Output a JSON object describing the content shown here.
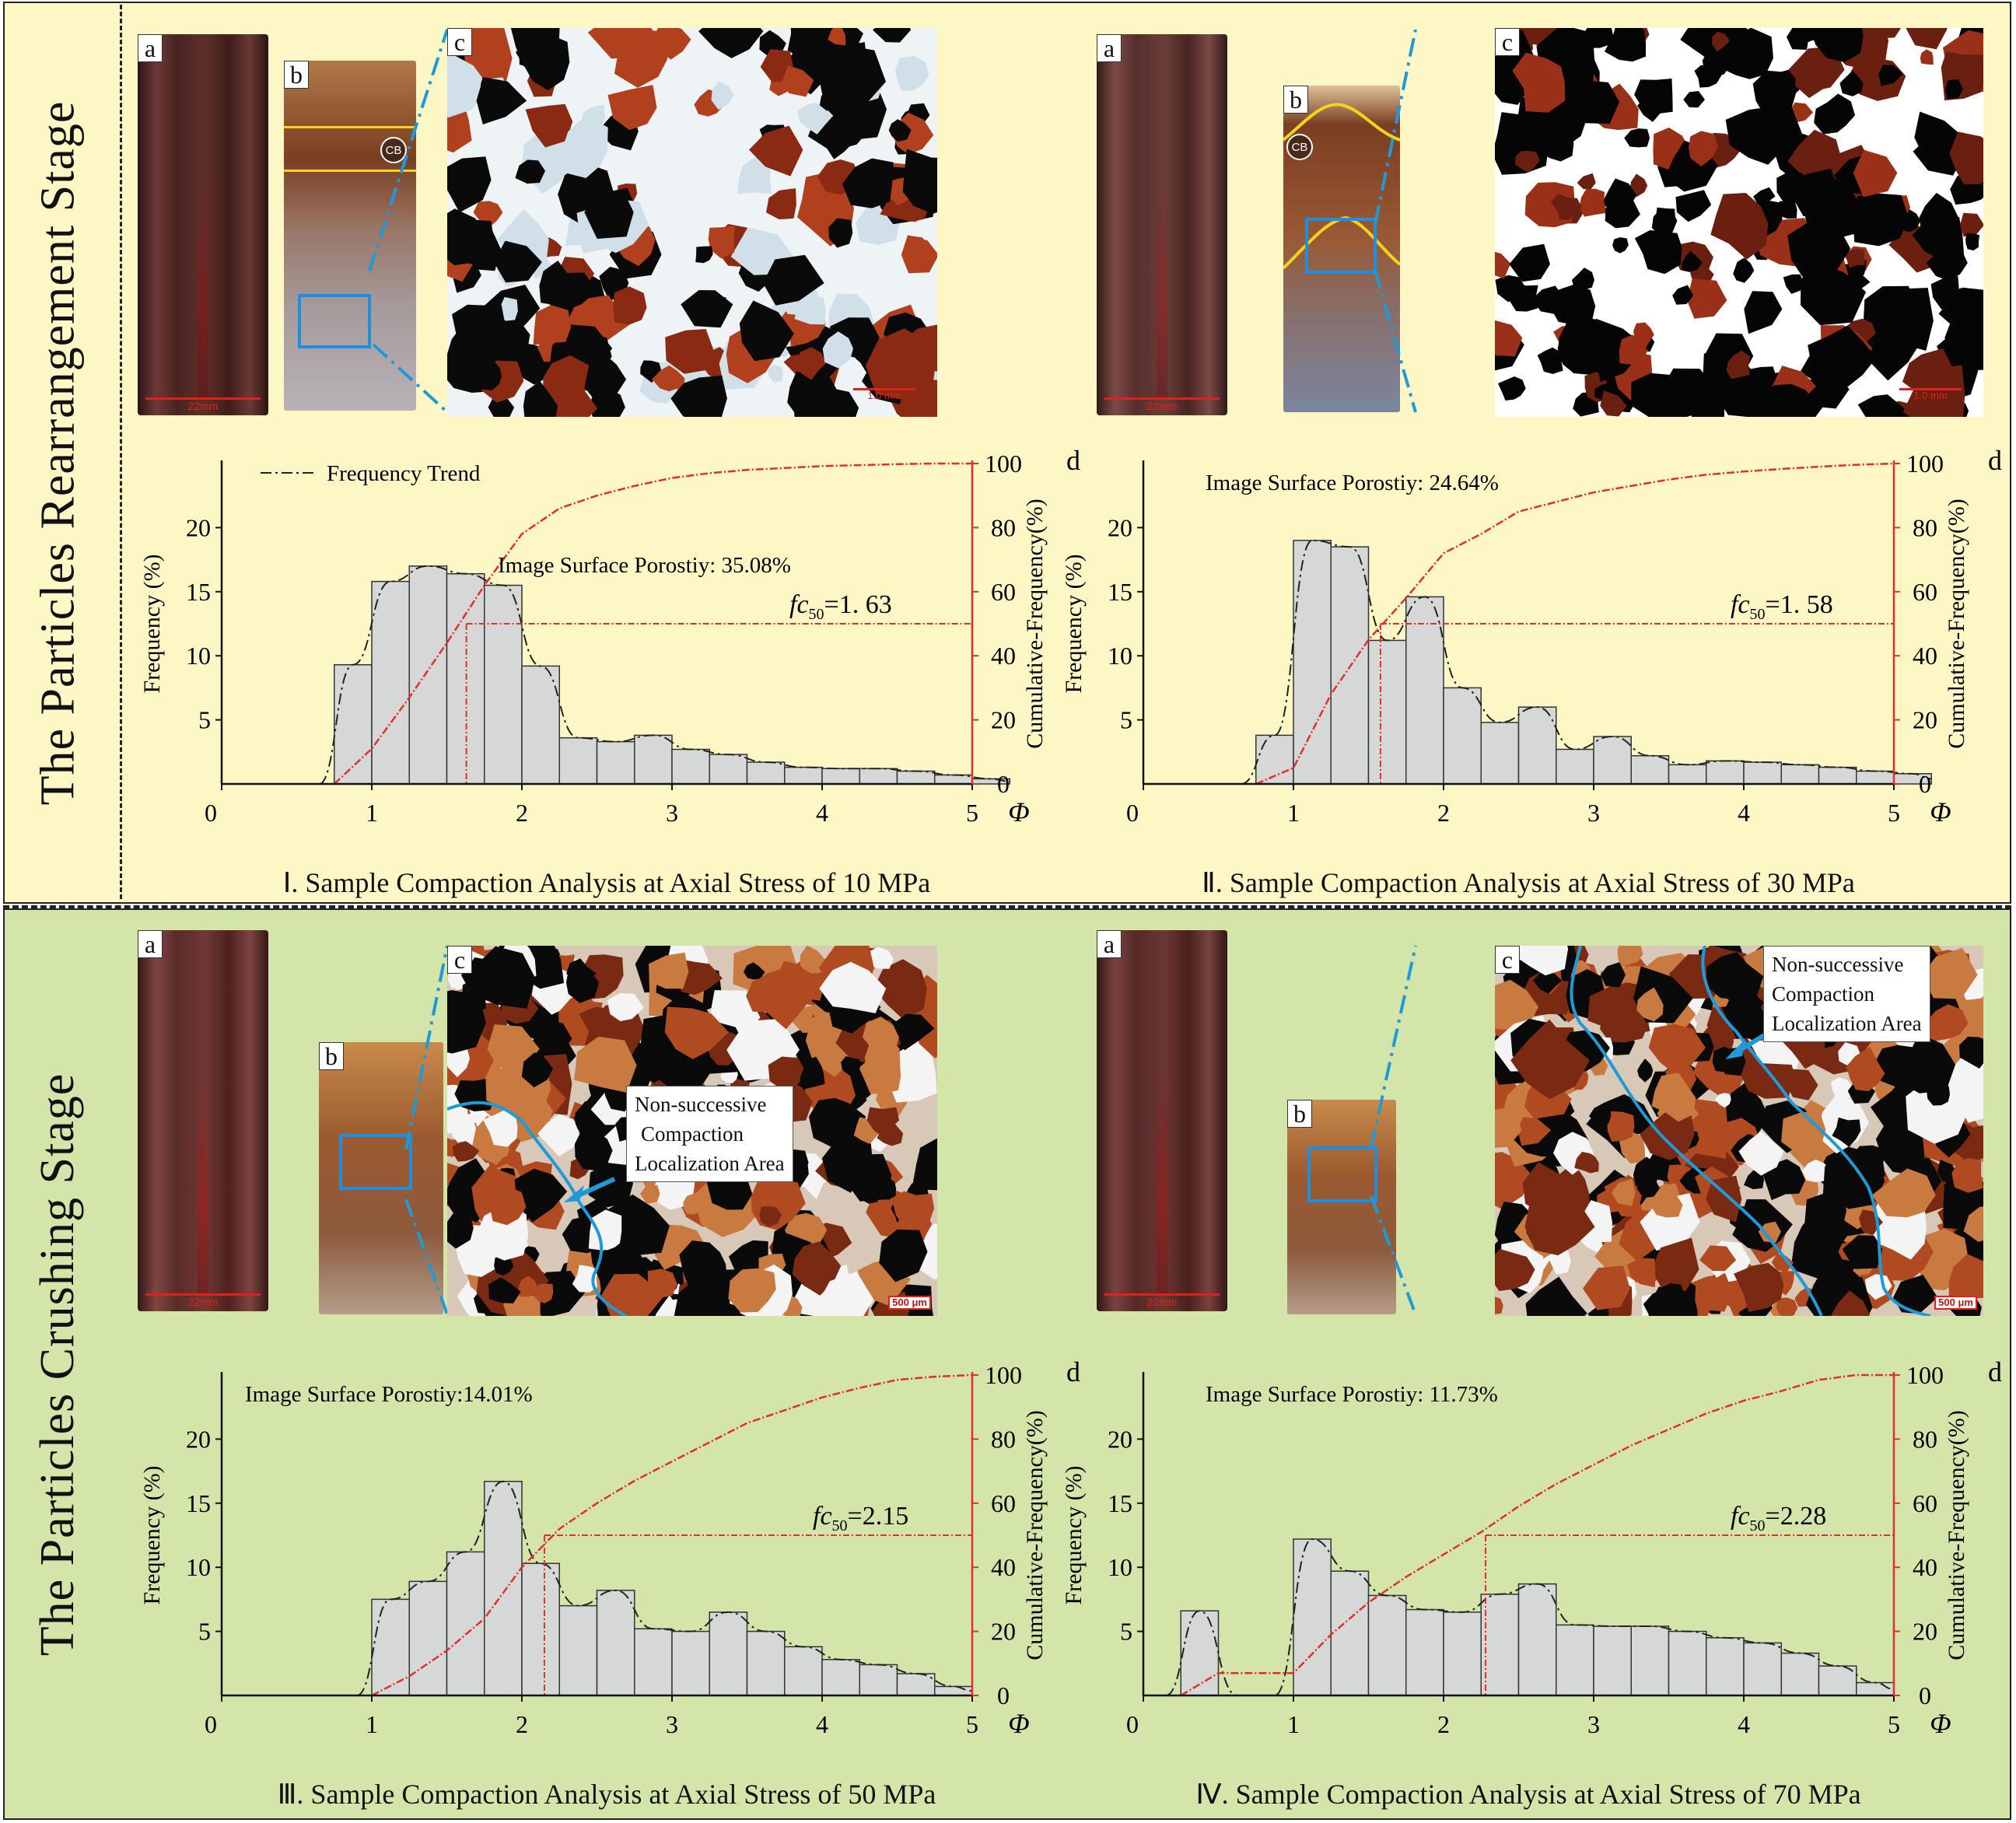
{
  "stages": [
    {
      "id": "top",
      "title": "The Particles Rearrangement Stage",
      "color": "#fdf7c6"
    },
    {
      "id": "bottom",
      "title": "The Particles Crushing  Stage",
      "color": "#d3e5a9"
    }
  ],
  "panel_labels": {
    "a": "a",
    "b": "b",
    "c": "c",
    "d": "d"
  },
  "scale_labels": {
    "core": "22mm",
    "micro_1": "1.0 mm",
    "micro_2": "1.0 mm",
    "micro_3": "500 μm",
    "micro_4": "500 μm"
  },
  "annotations": {
    "cb": "CB",
    "localization_1": [
      "Non-successive",
      "Compaction",
      "Localization Area"
    ],
    "localization_2": [
      "Non-successive",
      "Compaction",
      "Localization Area"
    ]
  },
  "legend": {
    "frequency_trend": "Frequency Trend"
  },
  "colors": {
    "bar_fill": "#d6d8d8",
    "bar_stroke": "#333333",
    "cum_line": "#e0302a",
    "trend_line": "#222222",
    "blue_box": "#1f8ee0",
    "yellow_line": "#f2d41b"
  },
  "axes": {
    "ylabel_left": "Frequency (%)",
    "ylabel_right": "Cumulative-Frequency(%)",
    "xlabel": "Φ",
    "x_ticks": [
      "0",
      "1",
      "2",
      "3",
      "4",
      "5"
    ],
    "y_left_ticks": [
      "5",
      "10",
      "15",
      "20"
    ],
    "y_right_ticks": [
      "0",
      "20",
      "40",
      "60",
      "80",
      "100"
    ]
  },
  "chart_data": [
    {
      "type": "bar",
      "caption": "Ⅰ. Sample Compaction Analysis at Axial Stress of 10 MPa",
      "porosity_label": "Image Surface Porostiy: 35.08%",
      "fc50_label": "=1. 63",
      "fc50_value": 1.63,
      "bin_start": 0.75,
      "bin_width": 0.25,
      "frequency": [
        9.3,
        15.8,
        17.0,
        16.4,
        15.5,
        9.2,
        3.6,
        3.3,
        3.8,
        2.7,
        2.3,
        1.7,
        1.3,
        1.2,
        1.2,
        1.0,
        0.7,
        0.4
      ],
      "cumulative_x": [
        0.75,
        1.0,
        1.25,
        1.5,
        1.75,
        2.0,
        2.25,
        2.5,
        2.75,
        3.0,
        3.25,
        3.5,
        3.75,
        4.0,
        4.25,
        4.5,
        4.75,
        5.0
      ],
      "cumulative": [
        0,
        11,
        27,
        44,
        62,
        78,
        86,
        90,
        93,
        95.5,
        97,
        98,
        98.6,
        99.2,
        99.5,
        99.8,
        100,
        100
      ],
      "x_range": [
        0,
        5
      ],
      "y_left_range": [
        0,
        25
      ],
      "y_right_range": [
        0,
        100
      ]
    },
    {
      "type": "bar",
      "caption": "Ⅱ. Sample Compaction Analysis at Axial Stress of 30 MPa",
      "porosity_label": "Image Surface Porostiy: 24.64%",
      "fc50_label": "=1. 58",
      "fc50_value": 1.58,
      "bin_start": 0.75,
      "bin_width": 0.25,
      "frequency": [
        3.8,
        19.0,
        18.5,
        11.2,
        14.6,
        7.5,
        4.8,
        6.0,
        2.7,
        3.7,
        2.2,
        1.5,
        1.8,
        1.7,
        1.5,
        1.3,
        1.0,
        0.8
      ],
      "cumulative_x": [
        0.75,
        1.0,
        1.25,
        1.5,
        1.75,
        2.0,
        2.25,
        2.5,
        2.75,
        3.0,
        3.25,
        3.5,
        3.75,
        4.0,
        4.25,
        4.5,
        4.75,
        5.0
      ],
      "cumulative": [
        0,
        5,
        28,
        45,
        58,
        72,
        78,
        85,
        88,
        91,
        93,
        95,
        96.5,
        97.5,
        98.3,
        99,
        99.6,
        100
      ],
      "x_range": [
        0,
        5
      ],
      "y_left_range": [
        0,
        25
      ],
      "y_right_range": [
        0,
        100
      ]
    },
    {
      "type": "bar",
      "caption": "Ⅲ. Sample Compaction Analysis at Axial Stress of 50 MPa",
      "porosity_label": "Image Surface Porostiy:14.01%",
      "fc50_label": "=2.15",
      "fc50_value": 2.15,
      "bin_start": 1.0,
      "bin_width": 0.25,
      "frequency": [
        7.5,
        8.9,
        11.2,
        16.7,
        10.3,
        7.0,
        8.2,
        5.2,
        5.0,
        6.5,
        5.0,
        3.8,
        2.8,
        2.4,
        1.7,
        0.7
      ],
      "cumulative_x": [
        1.0,
        1.25,
        1.5,
        1.75,
        2.0,
        2.25,
        2.5,
        2.75,
        3.0,
        3.25,
        3.5,
        3.75,
        4.0,
        4.25,
        4.5,
        4.75,
        5.0
      ],
      "cumulative": [
        0,
        6,
        14,
        24,
        40,
        52,
        60,
        67,
        73,
        79,
        85,
        89,
        93,
        96,
        98.5,
        99.5,
        100
      ],
      "x_range": [
        0,
        5
      ],
      "y_left_range": [
        0,
        25
      ],
      "y_right_range": [
        0,
        100
      ]
    },
    {
      "type": "bar",
      "caption": "Ⅳ. Sample Compaction Analysis at Axial Stress of 70 MPa",
      "porosity_label": "Image Surface Porostiy: 11.73%",
      "fc50_label": "=2.28",
      "fc50_value": 2.28,
      "bin_start": 0.25,
      "bin_width": 0.25,
      "frequency": [
        6.6,
        0,
        0,
        12.2,
        9.7,
        7.8,
        6.7,
        6.5,
        7.9,
        8.7,
        5.5,
        5.4,
        5.4,
        5.0,
        4.5,
        4.1,
        3.3,
        2.3,
        1.0
      ],
      "cumulative_x": [
        0.25,
        0.5,
        0.75,
        1.0,
        1.25,
        1.5,
        1.75,
        2.0,
        2.25,
        2.5,
        2.75,
        3.0,
        3.25,
        3.5,
        3.75,
        4.0,
        4.25,
        4.5,
        4.75,
        5.0
      ],
      "cumulative": [
        0,
        7,
        7,
        7,
        19,
        29,
        37,
        44,
        51,
        59,
        66,
        72,
        78,
        83,
        88,
        92,
        95,
        98.5,
        100,
        100
      ],
      "x_range": [
        0,
        5
      ],
      "y_left_range": [
        0,
        25
      ],
      "y_right_range": [
        0,
        100
      ]
    }
  ]
}
